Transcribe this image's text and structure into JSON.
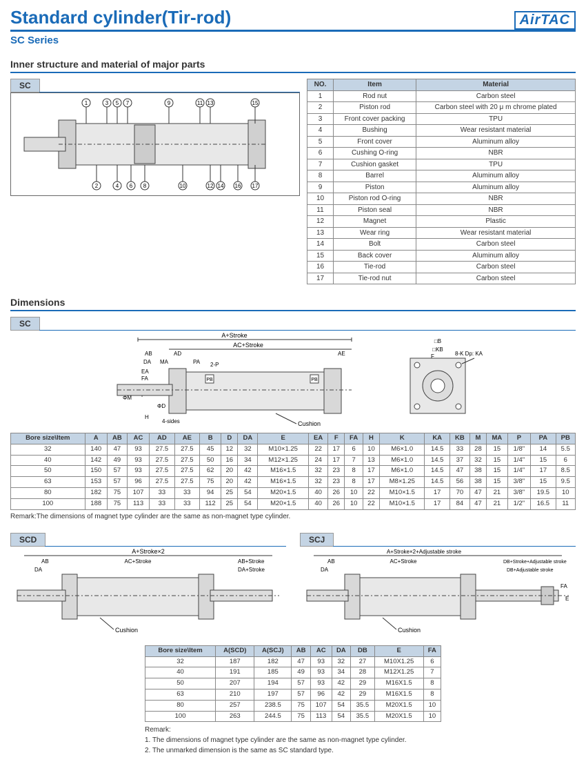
{
  "header": {
    "title": "Standard cylinder(Tir-rod)",
    "logo": "AirTAC",
    "subtitle": "SC Series"
  },
  "section1": {
    "title": "Inner structure and material of major parts",
    "tag": "SC"
  },
  "materials": {
    "headers": [
      "NO.",
      "Item",
      "Material"
    ],
    "rows": [
      [
        "1",
        "Rod nut",
        "Carbon steel"
      ],
      [
        "2",
        "Piston rod",
        "Carbon steel with 20 μ m chrome plated"
      ],
      [
        "3",
        "Front cover packing",
        "TPU"
      ],
      [
        "4",
        "Bushing",
        "Wear resistant material"
      ],
      [
        "5",
        "Front cover",
        "Aluminum alloy"
      ],
      [
        "6",
        "Cushing O-ring",
        "NBR"
      ],
      [
        "7",
        "Cushion gasket",
        "TPU"
      ],
      [
        "8",
        "Barrel",
        "Aluminum alloy"
      ],
      [
        "9",
        "Piston",
        "Aluminum alloy"
      ],
      [
        "10",
        "Piston rod O-ring",
        "NBR"
      ],
      [
        "11",
        "Piston seal",
        "NBR"
      ],
      [
        "12",
        "Magnet",
        "Plastic"
      ],
      [
        "13",
        "Wear ring",
        "Wear resistant material"
      ],
      [
        "14",
        "Bolt",
        "Carbon steel"
      ],
      [
        "15",
        "Back cover",
        "Aluminum alloy"
      ],
      [
        "16",
        "Tie-rod",
        "Carbon steel"
      ],
      [
        "17",
        "Tie-rod nut",
        "Carbon steel"
      ]
    ]
  },
  "section2": {
    "title": "Dimensions",
    "tag": "SC"
  },
  "dim_labels": {
    "a_stroke": "A+Stroke",
    "ac_stroke": "AC+Stroke",
    "cushion": "Cushion",
    "sides": "4-sides",
    "kdp": "8-K Dp: KA"
  },
  "dim_table": {
    "headers": [
      "Bore size\\Item",
      "A",
      "AB",
      "AC",
      "AD",
      "AE",
      "B",
      "D",
      "DA",
      "E",
      "EA",
      "F",
      "FA",
      "H",
      "K",
      "KA",
      "KB",
      "M",
      "MA",
      "P",
      "PA",
      "PB"
    ],
    "rows": [
      [
        "32",
        "140",
        "47",
        "93",
        "27.5",
        "27.5",
        "45",
        "12",
        "32",
        "M10×1.25",
        "22",
        "17",
        "6",
        "10",
        "M6×1.0",
        "14.5",
        "33",
        "28",
        "15",
        "1/8\"",
        "14",
        "5.5"
      ],
      [
        "40",
        "142",
        "49",
        "93",
        "27.5",
        "27.5",
        "50",
        "16",
        "34",
        "M12×1.25",
        "24",
        "17",
        "7",
        "13",
        "M6×1.0",
        "14.5",
        "37",
        "32",
        "15",
        "1/4\"",
        "15",
        "6"
      ],
      [
        "50",
        "150",
        "57",
        "93",
        "27.5",
        "27.5",
        "62",
        "20",
        "42",
        "M16×1.5",
        "32",
        "23",
        "8",
        "17",
        "M6×1.0",
        "14.5",
        "47",
        "38",
        "15",
        "1/4\"",
        "17",
        "8.5"
      ],
      [
        "63",
        "153",
        "57",
        "96",
        "27.5",
        "27.5",
        "75",
        "20",
        "42",
        "M16×1.5",
        "32",
        "23",
        "8",
        "17",
        "M8×1.25",
        "14.5",
        "56",
        "38",
        "15",
        "3/8\"",
        "15",
        "9.5"
      ],
      [
        "80",
        "182",
        "75",
        "107",
        "33",
        "33",
        "94",
        "25",
        "54",
        "M20×1.5",
        "40",
        "26",
        "10",
        "22",
        "M10×1.5",
        "17",
        "70",
        "47",
        "21",
        "3/8\"",
        "19.5",
        "10"
      ],
      [
        "100",
        "188",
        "75",
        "113",
        "33",
        "33",
        "112",
        "25",
        "54",
        "M20×1.5",
        "40",
        "26",
        "10",
        "22",
        "M10×1.5",
        "17",
        "84",
        "47",
        "21",
        "1/2\"",
        "16.5",
        "11"
      ]
    ],
    "remark": "Remark:The dimensions of magnet type cylinder are the same as non-magnet type cylinder."
  },
  "scd": {
    "tag": "SCD",
    "l1": "A+Stroke×2",
    "l2": "AC+Stroke",
    "l3": "AB+Stroke",
    "l4": "DA+Stroke",
    "cushion": "Cushion"
  },
  "scj": {
    "tag": "SCJ",
    "l1": "A+Stroke×2+Adjustable stroke",
    "l2": "AC+Stroke",
    "l3": "DB+Stroke+Adjustable stroke",
    "l4": "DB+Adjustable stroke",
    "cushion": "Cushion"
  },
  "dim_table2": {
    "headers": [
      "Bore size\\Item",
      "A(SCD)",
      "A(SCJ)",
      "AB",
      "AC",
      "DA",
      "DB",
      "E",
      "FA"
    ],
    "rows": [
      [
        "32",
        "187",
        "182",
        "47",
        "93",
        "32",
        "27",
        "M10X1.25",
        "6"
      ],
      [
        "40",
        "191",
        "185",
        "49",
        "93",
        "34",
        "28",
        "M12X1.25",
        "7"
      ],
      [
        "50",
        "207",
        "194",
        "57",
        "93",
        "42",
        "29",
        "M16X1.5",
        "8"
      ],
      [
        "63",
        "210",
        "197",
        "57",
        "96",
        "42",
        "29",
        "M16X1.5",
        "8"
      ],
      [
        "80",
        "257",
        "238.5",
        "75",
        "107",
        "54",
        "35.5",
        "M20X1.5",
        "10"
      ],
      [
        "100",
        "263",
        "244.5",
        "75",
        "113",
        "54",
        "35.5",
        "M20X1.5",
        "10"
      ]
    ],
    "remark_h": "Remark:",
    "remark1": "1. The dimensions of magnet type cylinder are the same as non-magnet type cylinder.",
    "remark2": "2. The unmarked dimension is the same as SC standard type."
  }
}
